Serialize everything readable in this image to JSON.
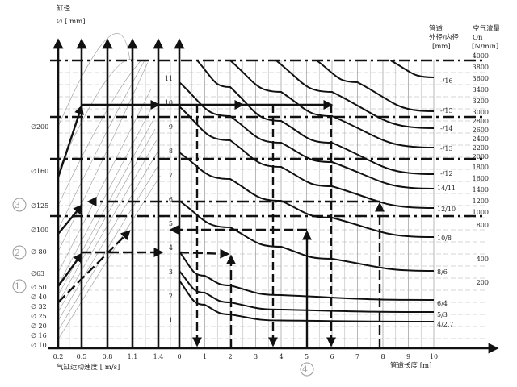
{
  "chart_data": {
    "type": "line",
    "title": "",
    "left_header": {
      "line1": "缸径",
      "line2": "∅ [    mm]"
    },
    "right_header": {
      "tube_title1": "管道",
      "tube_title2": "外径/内径",
      "tube_unit": "[mm]",
      "flow_title1": "空气流量",
      "flow_title2": "Qn",
      "flow_unit": "[N/min]"
    },
    "speed_axis": {
      "label": "气缸运动速度 [ m/s]",
      "ticks": [
        "0.2",
        "0.5",
        "0.8",
        "1.1",
        "1.4"
      ]
    },
    "length_axis": {
      "label": "管道长度 [m]",
      "ticks": [
        "0",
        "1",
        "2",
        "3",
        "4",
        "5",
        "6",
        "7",
        "8",
        "9",
        "10"
      ],
      "xlim": [
        0,
        10
      ]
    },
    "pressure_ticks": [
      "1",
      "2",
      "3",
      "4",
      "5",
      "6",
      "7",
      "8",
      "9",
      "10",
      "11"
    ],
    "bore_labels": [
      "∅200",
      "∅160",
      "∅125",
      "∅100",
      "∅ 80",
      "∅63",
      "∅ 50",
      "∅ 40",
      "∅ 32",
      "∅ 25",
      "∅ 20",
      "∅ 16",
      "∅ 10"
    ],
    "flow_labels": [
      "4000",
      "3800",
      "3600",
      "3400",
      "3200",
      "3000",
      "2800",
      "2600",
      "2400",
      "2200",
      "2000",
      "1800",
      "1600",
      "1400",
      "1200",
      "1000",
      "800",
      "400",
      "200"
    ],
    "markers": {
      "m1": "①",
      "m2": "②",
      "m3": "③",
      "m4": "④"
    },
    "series": [
      {
        "name": "4/2.7",
        "points": [
          [
            0,
            2.8
          ],
          [
            1,
            1.8
          ],
          [
            2,
            1.4
          ],
          [
            4,
            1.15
          ],
          [
            10,
            1.1
          ]
        ]
      },
      {
        "name": "5/3",
        "points": [
          [
            0,
            3.2
          ],
          [
            1,
            2.3
          ],
          [
            2,
            1.9
          ],
          [
            4,
            1.6
          ],
          [
            10,
            1.5
          ]
        ]
      },
      {
        "name": "6/4",
        "points": [
          [
            0,
            4.0
          ],
          [
            1,
            3.0
          ],
          [
            2,
            2.6
          ],
          [
            4,
            2.2
          ],
          [
            10,
            2.0
          ]
        ]
      },
      {
        "name": "8/6",
        "points": [
          [
            0,
            6.1
          ],
          [
            2,
            5.0
          ],
          [
            4,
            4.2
          ],
          [
            6,
            3.7
          ],
          [
            10,
            3.2
          ]
        ]
      },
      {
        "name": "10/8",
        "points": [
          [
            0,
            8.1
          ],
          [
            2,
            7.0
          ],
          [
            4,
            6.1
          ],
          [
            6,
            5.4
          ],
          [
            10,
            4.6
          ]
        ]
      },
      {
        "name": "12/10",
        "points": [
          [
            0,
            10.0
          ],
          [
            2,
            8.6
          ],
          [
            4,
            7.5
          ],
          [
            6,
            6.7
          ],
          [
            10,
            5.8
          ]
        ]
      },
      {
        "name": "14/11",
        "points": [
          [
            0,
            11.0
          ],
          [
            2,
            9.6
          ],
          [
            4,
            8.5
          ],
          [
            6,
            7.7
          ],
          [
            10,
            6.6
          ]
        ]
      },
      {
        "name": "-/12",
        "points": [
          [
            0.7,
            11.9
          ],
          [
            2,
            10.8
          ],
          [
            4,
            9.4
          ],
          [
            6,
            8.5
          ],
          [
            10,
            7.2
          ]
        ]
      },
      {
        "name": "-/13",
        "points": [
          [
            2,
            11.9
          ],
          [
            4,
            10.6
          ],
          [
            6,
            9.6
          ],
          [
            10,
            8.3
          ]
        ]
      },
      {
        "name": "-/14",
        "points": [
          [
            3.8,
            11.9
          ],
          [
            6,
            10.6
          ],
          [
            10,
            9.1
          ]
        ]
      },
      {
        "name": "-/15",
        "points": [
          [
            5.4,
            11.9
          ],
          [
            7,
            11.0
          ],
          [
            10,
            9.8
          ]
        ]
      },
      {
        "name": "-/16",
        "points": [
          [
            8.3,
            11.9
          ],
          [
            10,
            11.2
          ]
        ]
      }
    ]
  }
}
